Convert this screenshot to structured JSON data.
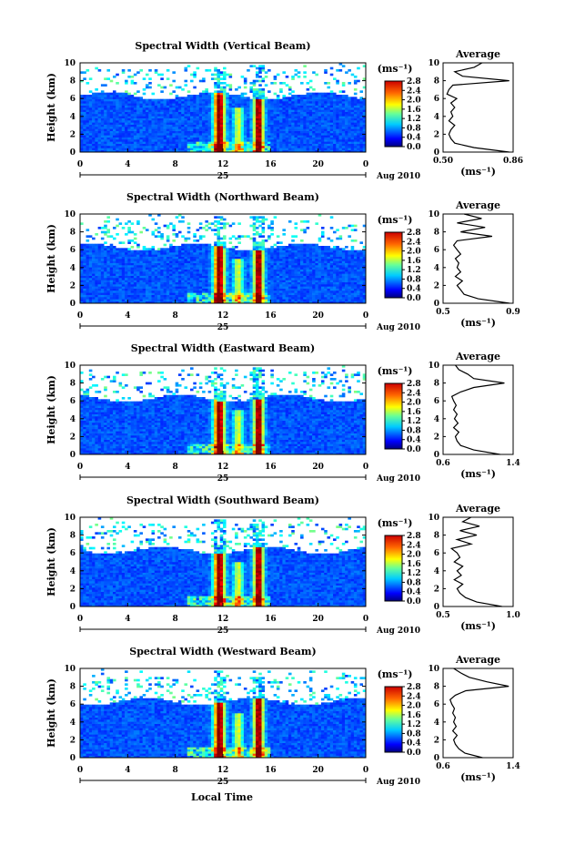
{
  "figure": {
    "xlabel": "Local Time",
    "ylabel": "Height (km)",
    "date_label": "Aug 2010",
    "day_label": "25",
    "avg_title": "Average",
    "avg_xlabel": "(ms⁻¹)",
    "cbar_unit": "(ms⁻¹)"
  },
  "chart_data": [
    {
      "type": "heatmap",
      "title": "Spectral Width (Vertical Beam)",
      "xlabel": "Local Time",
      "ylabel": "Height (km)",
      "xlim": [
        0,
        24
      ],
      "ylim": [
        0,
        10
      ],
      "xticks": [
        "0",
        "4",
        "8",
        "12",
        "16",
        "20",
        "0"
      ],
      "yticks": [
        "0",
        "2",
        "4",
        "6",
        "8",
        "10"
      ],
      "colorbar": {
        "range": [
          0.0,
          2.8
        ],
        "ticks": [
          "2.8",
          "2.4",
          "2.0",
          "1.6",
          "1.2",
          "0.8",
          "0.4",
          "0.0"
        ]
      },
      "average_profile": {
        "title": "Average",
        "xlim": [
          0.5,
          0.86
        ],
        "xticks": [
          "0.50",
          "0.86"
        ],
        "ylim": [
          0,
          10
        ],
        "yticks": [
          "0",
          "2",
          "4",
          "6",
          "8",
          "10"
        ],
        "height_km": [
          0,
          0.5,
          1,
          1.5,
          2,
          2.5,
          3,
          3.5,
          4,
          4.5,
          5,
          5.5,
          6,
          6.5,
          7,
          7.5,
          8,
          8.5,
          9,
          9.5,
          10
        ],
        "values": [
          0.84,
          0.66,
          0.56,
          0.54,
          0.53,
          0.54,
          0.56,
          0.53,
          0.55,
          0.54,
          0.56,
          0.54,
          0.57,
          0.52,
          0.53,
          0.55,
          0.84,
          0.6,
          0.56,
          0.66,
          0.7
        ]
      }
    },
    {
      "type": "heatmap",
      "title": "Spectral Width (Northward Beam)",
      "xlabel": "Local Time",
      "ylabel": "Height (km)",
      "xlim": [
        0,
        24
      ],
      "ylim": [
        0,
        10
      ],
      "xticks": [
        "0",
        "4",
        "8",
        "12",
        "16",
        "20",
        "0"
      ],
      "yticks": [
        "0",
        "2",
        "4",
        "6",
        "8",
        "10"
      ],
      "colorbar": {
        "range": [
          0.0,
          2.8
        ],
        "ticks": [
          "2.8",
          "2.4",
          "2.0",
          "1.6",
          "1.2",
          "0.8",
          "0.4",
          "0.0"
        ]
      },
      "average_profile": {
        "title": "Average",
        "xlim": [
          0.5,
          0.9
        ],
        "xticks": [
          "0.5",
          "0.9"
        ],
        "ylim": [
          0,
          10
        ],
        "yticks": [
          "0",
          "2",
          "4",
          "6",
          "8",
          "10"
        ],
        "height_km": [
          0,
          0.5,
          1,
          1.5,
          2,
          2.5,
          3,
          3.5,
          4,
          4.5,
          5,
          5.5,
          6,
          6.5,
          7,
          7.5,
          8,
          8.5,
          9,
          9.5,
          10
        ],
        "values": [
          0.88,
          0.7,
          0.62,
          0.6,
          0.58,
          0.61,
          0.57,
          0.6,
          0.58,
          0.59,
          0.57,
          0.6,
          0.58,
          0.56,
          0.58,
          0.78,
          0.6,
          0.74,
          0.58,
          0.72,
          0.62
        ]
      }
    },
    {
      "type": "heatmap",
      "title": "Spectral Width (Eastward Beam)",
      "xlabel": "Local Time",
      "ylabel": "Height (km)",
      "xlim": [
        0,
        24
      ],
      "ylim": [
        0,
        10
      ],
      "xticks": [
        "0",
        "4",
        "8",
        "12",
        "16",
        "20",
        "0"
      ],
      "yticks": [
        "0",
        "2",
        "4",
        "6",
        "8",
        "10"
      ],
      "colorbar": {
        "range": [
          0.0,
          2.8
        ],
        "ticks": [
          "2.8",
          "2.4",
          "2.0",
          "1.6",
          "1.2",
          "0.8",
          "0.4",
          "0.0"
        ]
      },
      "average_profile": {
        "title": "Average",
        "xlim": [
          0.6,
          1.4
        ],
        "xticks": [
          "0.6",
          "1.4"
        ],
        "ylim": [
          0,
          10
        ],
        "yticks": [
          "0",
          "2",
          "4",
          "6",
          "8",
          "10"
        ],
        "height_km": [
          0,
          0.5,
          1,
          1.5,
          2,
          2.5,
          3,
          3.5,
          4,
          4.5,
          5,
          5.5,
          6,
          6.5,
          7,
          7.5,
          8,
          8.5,
          9,
          9.5,
          10
        ],
        "values": [
          1.25,
          0.95,
          0.8,
          0.76,
          0.74,
          0.78,
          0.72,
          0.77,
          0.73,
          0.76,
          0.72,
          0.75,
          0.72,
          0.7,
          0.8,
          0.95,
          1.3,
          0.95,
          0.88,
          0.78,
          0.74
        ]
      }
    },
    {
      "type": "heatmap",
      "title": "Spectral Width (Southward Beam)",
      "xlabel": "Local Time",
      "ylabel": "Height (km)",
      "xlim": [
        0,
        24
      ],
      "ylim": [
        0,
        10
      ],
      "xticks": [
        "0",
        "4",
        "8",
        "12",
        "16",
        "20",
        "0"
      ],
      "yticks": [
        "0",
        "2",
        "4",
        "6",
        "8",
        "10"
      ],
      "colorbar": {
        "range": [
          0.0,
          2.8
        ],
        "ticks": [
          "2.8",
          "2.4",
          "2.0",
          "1.6",
          "1.2",
          "0.8",
          "0.4",
          "0.0"
        ]
      },
      "average_profile": {
        "title": "Average",
        "xlim": [
          0.5,
          1.0
        ],
        "xticks": [
          "0.5",
          "1.0"
        ],
        "ylim": [
          0,
          10
        ],
        "yticks": [
          "0",
          "2",
          "4",
          "6",
          "8",
          "10"
        ],
        "height_km": [
          0,
          0.5,
          1,
          1.5,
          2,
          2.5,
          3,
          3.5,
          4,
          4.5,
          5,
          5.5,
          6,
          6.5,
          7,
          7.5,
          8,
          8.5,
          9,
          9.5,
          10
        ],
        "values": [
          0.92,
          0.74,
          0.66,
          0.62,
          0.6,
          0.64,
          0.58,
          0.63,
          0.6,
          0.64,
          0.58,
          0.62,
          0.6,
          0.56,
          0.7,
          0.6,
          0.74,
          0.62,
          0.76,
          0.64,
          0.7
        ]
      }
    },
    {
      "type": "heatmap",
      "title": "Spectral Width (Westward Beam)",
      "xlabel": "Local Time",
      "ylabel": "Height (km)",
      "xlim": [
        0,
        24
      ],
      "ylim": [
        0,
        10
      ],
      "xticks": [
        "0",
        "4",
        "8",
        "12",
        "16",
        "20",
        "0"
      ],
      "yticks": [
        "0",
        "2",
        "4",
        "6",
        "8",
        "10"
      ],
      "colorbar": {
        "range": [
          0.0,
          2.8
        ],
        "ticks": [
          "2.8",
          "2.4",
          "2.0",
          "1.6",
          "1.2",
          "0.8",
          "0.4",
          "0.0"
        ]
      },
      "average_profile": {
        "title": "Average",
        "xlim": [
          0.6,
          1.4
        ],
        "xticks": [
          "0.6",
          "1.4"
        ],
        "ylim": [
          0,
          10
        ],
        "yticks": [
          "0",
          "2",
          "4",
          "6",
          "8",
          "10"
        ],
        "height_km": [
          0,
          0.5,
          1,
          1.5,
          2,
          2.5,
          3,
          3.5,
          4,
          4.5,
          5,
          5.5,
          6,
          6.5,
          7,
          7.5,
          8,
          8.5,
          9,
          9.5,
          10
        ],
        "values": [
          1.05,
          0.85,
          0.78,
          0.74,
          0.72,
          0.76,
          0.71,
          0.75,
          0.72,
          0.74,
          0.71,
          0.73,
          0.7,
          0.68,
          0.74,
          0.86,
          1.35,
          1.1,
          0.9,
          0.8,
          0.72
        ]
      }
    }
  ]
}
